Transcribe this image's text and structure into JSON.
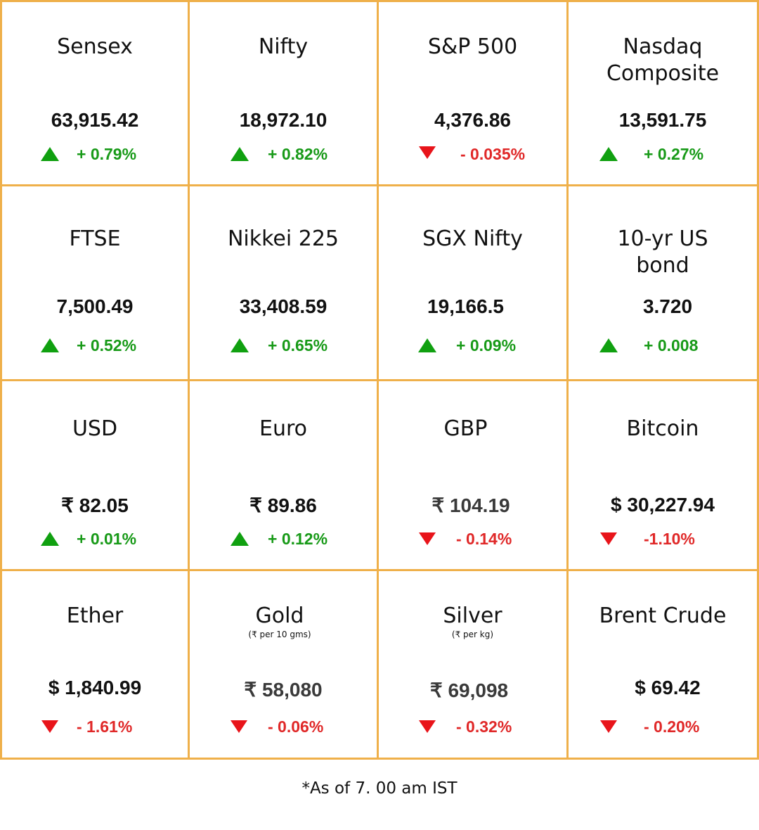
{
  "tiles": [
    {
      "title": "Sensex",
      "value": "63,915.42",
      "change": "+ 0.79%",
      "direction": "up"
    },
    {
      "title": "Nifty",
      "value": "18,972.10",
      "change": "+ 0.82%",
      "direction": "up"
    },
    {
      "title": "S&P 500",
      "value": "4,376.86",
      "change": "- 0.035%",
      "direction": "down"
    },
    {
      "title": "Nasdaq Composite",
      "value": "13,591.75",
      "change": "+ 0.27%",
      "direction": "up"
    },
    {
      "title": "FTSE",
      "value": "7,500.49",
      "change": "+ 0.52%",
      "direction": "up"
    },
    {
      "title": "Nikkei 225",
      "value": "33,408.59",
      "change": "+ 0.65%",
      "direction": "up"
    },
    {
      "title": "SGX Nifty",
      "value": "19,166.5",
      "change": "+ 0.09%",
      "direction": "up"
    },
    {
      "title": "10-yr US bond",
      "value": "3.720",
      "change": "+ 0.008",
      "direction": "up"
    },
    {
      "title": "USD",
      "value": "₹ 82.05",
      "change": "+ 0.01%",
      "direction": "up"
    },
    {
      "title": "Euro",
      "value": "₹ 89.86",
      "change": "+ 0.12%",
      "direction": "up"
    },
    {
      "title": "GBP",
      "value": "₹ 104.19",
      "change": "- 0.14%",
      "direction": "down"
    },
    {
      "title": "Bitcoin",
      "value": "$ 30,227.94",
      "change": "-1.10%",
      "direction": "down"
    },
    {
      "title": "Ether",
      "value": "$ 1,840.99",
      "change": "- 1.61%",
      "direction": "down"
    },
    {
      "title": "Gold",
      "subtitle": "(₹ per 10 gms)",
      "value": "₹ 58,080",
      "change": "- 0.06%",
      "direction": "down"
    },
    {
      "title": "Silver",
      "subtitle": "(₹ per kg)",
      "value": "₹ 69,098",
      "change": "- 0.32%",
      "direction": "down"
    },
    {
      "title": "Brent Crude",
      "value": "$ 69.42",
      "change": "- 0.20%",
      "direction": "down"
    }
  ],
  "footnote": "*As of 7. 00 am IST",
  "colors": {
    "border": "#EFB04A",
    "up": "#189a18",
    "down": "#e02828"
  }
}
